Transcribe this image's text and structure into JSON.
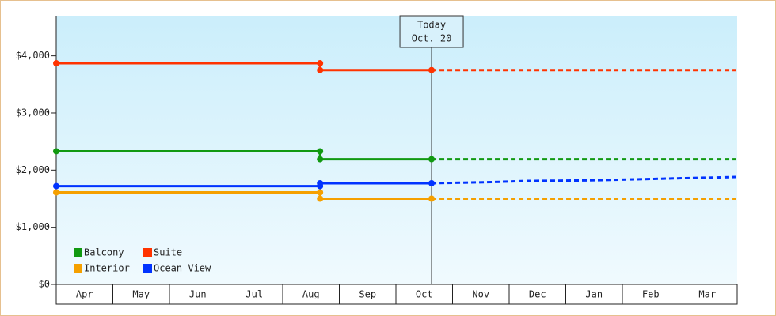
{
  "chart_data": {
    "type": "line",
    "categories": [
      "Apr",
      "May",
      "Jun",
      "Jul",
      "Aug",
      "Sep",
      "Oct",
      "Nov",
      "Dec",
      "Jan",
      "Feb",
      "Mar"
    ],
    "xlim": [
      0,
      12
    ],
    "ylim": [
      0,
      4700
    ],
    "yticks": [
      {
        "value": 0,
        "label": "$0"
      },
      {
        "value": 1000,
        "label": "$1,000"
      },
      {
        "value": 2000,
        "label": "$2,000"
      },
      {
        "value": 3000,
        "label": "$3,000"
      },
      {
        "value": 4000,
        "label": "$4,000"
      }
    ],
    "series": [
      {
        "name": "Balcony",
        "color": "#119911",
        "x": [
          0,
          4.66,
          4.66,
          6.63
        ],
        "values": [
          2330,
          2330,
          2190,
          2190
        ],
        "forecast_x": [
          6.63,
          12
        ],
        "forecast_values": [
          2190,
          2190
        ]
      },
      {
        "name": "Suite",
        "color": "#ff3300",
        "x": [
          0,
          4.66,
          4.66,
          6.63
        ],
        "values": [
          3870,
          3870,
          3750,
          3750
        ],
        "forecast_x": [
          6.63,
          12
        ],
        "forecast_values": [
          3750,
          3750
        ]
      },
      {
        "name": "Interior",
        "color": "#f5a000",
        "x": [
          0,
          4.66,
          4.66,
          6.63
        ],
        "values": [
          1610,
          1610,
          1500,
          1500
        ],
        "forecast_x": [
          6.63,
          12
        ],
        "forecast_values": [
          1500,
          1500
        ]
      },
      {
        "name": "Ocean View",
        "color": "#0033ff",
        "x": [
          0,
          4.66,
          4.66,
          6.63
        ],
        "values": [
          1720,
          1720,
          1770,
          1770
        ],
        "forecast_x": [
          6.63,
          7.7,
          8.3,
          9.4,
          10.3,
          11.1,
          11.6,
          12
        ],
        "forecast_values": [
          1770,
          1790,
          1810,
          1820,
          1840,
          1860,
          1870,
          1880
        ]
      }
    ],
    "annotation": {
      "x": 6.63,
      "lines": [
        "Today",
        "Oct. 20"
      ]
    }
  }
}
